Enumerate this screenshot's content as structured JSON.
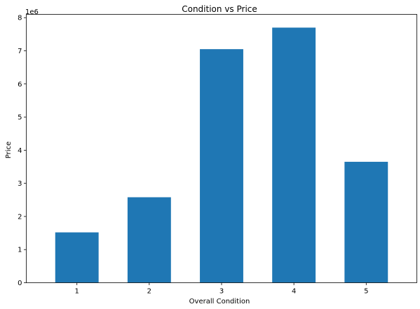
{
  "chart_data": {
    "type": "bar",
    "title": "Condition vs Price",
    "xlabel": "Overall Condition",
    "ylabel": "Price",
    "offset_label": "1e6",
    "categories": [
      "1",
      "2",
      "3",
      "4",
      "5"
    ],
    "values": [
      1520000,
      2580000,
      7050000,
      7700000,
      3650000
    ],
    "ylim": [
      0,
      8100000
    ],
    "yticks": [
      0,
      1000000,
      2000000,
      3000000,
      4000000,
      5000000,
      6000000,
      7000000,
      8000000
    ],
    "ytick_labels": [
      "0",
      "1",
      "2",
      "3",
      "4",
      "5",
      "6",
      "7",
      "8"
    ],
    "bar_color": "#1f77b4",
    "grid": false,
    "legend": "none"
  }
}
